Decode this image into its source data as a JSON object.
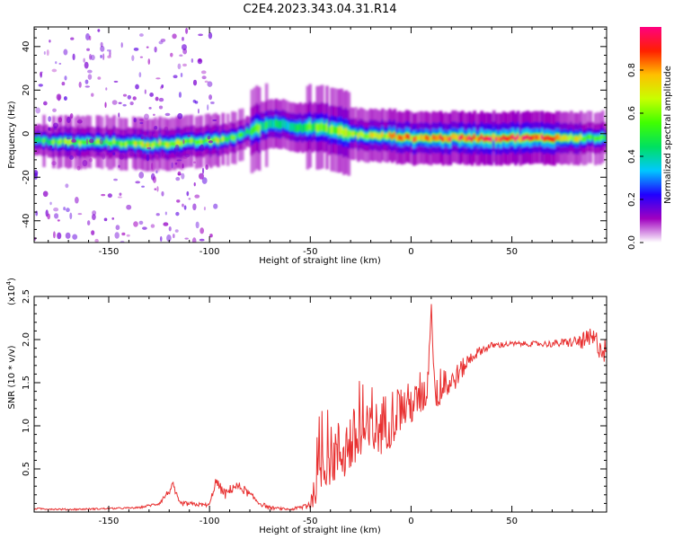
{
  "title": "C2E4.2023.343.04.31.R14",
  "chart_data": [
    {
      "type": "heatmap",
      "title": "C2E4.2023.343.04.31.R14",
      "xlabel": "Height of straight line (km)",
      "ylabel": "Frequency (Hz)",
      "xlim": [
        -187,
        97
      ],
      "ylim": [
        -50,
        49
      ],
      "xticks": [
        -150,
        -100,
        -50,
        0,
        50
      ],
      "yticks": [
        -40,
        -20,
        0,
        20,
        40
      ],
      "xtick_labels": [
        "-150",
        "-100",
        "-50",
        "0",
        "50"
      ],
      "ytick_labels": [
        "-40",
        "-20",
        "0",
        "20",
        "40"
      ],
      "colorbar": {
        "label": "Normalized spectral amplitude",
        "range": [
          0,
          1
        ],
        "ticks": [
          0.0,
          0.2,
          0.4,
          0.6,
          0.8
        ],
        "tick_labels": [
          "0.0",
          "0.2",
          "0.4",
          "0.6",
          "0.8"
        ],
        "colormap": [
          "#ffffff",
          "#a000c0",
          "#2000ff",
          "#00c8ff",
          "#00e060",
          "#40ff00",
          "#c8ff00",
          "#ffc000",
          "#ff2000",
          "#ff0080"
        ]
      },
      "ridge": {
        "description_values_hz_vs_km": true,
        "x": [
          -187,
          -170,
          -150,
          -130,
          -110,
          -95,
          -85,
          -75,
          -68,
          -62,
          -55,
          -48,
          -40,
          -30,
          -20,
          -10,
          0,
          10,
          30,
          50,
          75,
          90,
          97
        ],
        "y": [
          -3,
          -4,
          -4,
          -5,
          -4,
          -3,
          -1,
          3,
          5,
          4,
          3,
          3,
          2,
          0,
          -1,
          -1,
          -2,
          -2,
          -2,
          -2,
          -2,
          -2,
          -2
        ],
        "amplitude": [
          0.5,
          0.6,
          0.55,
          0.7,
          0.6,
          0.65,
          0.5,
          0.55,
          0.45,
          0.4,
          0.5,
          0.55,
          0.6,
          0.65,
          0.7,
          0.75,
          0.85,
          0.9,
          0.92,
          0.95,
          0.9,
          0.6,
          0.5
        ]
      }
    },
    {
      "type": "line",
      "xlabel": "Height of straight line (km)",
      "ylabel": "SNR (10 * v/v)",
      "y_scale_label": "(x10",
      "y_scale_exp": "4",
      "y_scale_close": ")",
      "xlim": [
        -187,
        97
      ],
      "ylim": [
        0,
        2.5
      ],
      "xticks": [
        -150,
        -100,
        -50,
        0,
        50
      ],
      "yticks": [
        0.5,
        1.0,
        1.5,
        2.0,
        2.5
      ],
      "xtick_labels": [
        "-150",
        "-100",
        "-50",
        "0",
        "50"
      ],
      "ytick_labels": [
        "0.5",
        "1.0",
        "1.5",
        "2.0",
        "2.5"
      ],
      "color": "#e83030",
      "x": [
        -187,
        -170,
        -150,
        -135,
        -125,
        -118,
        -115,
        -100,
        -97,
        -92,
        -88,
        -84,
        -80,
        -75,
        -70,
        -60,
        -55,
        -50,
        -47,
        -45,
        -40,
        -35,
        -30,
        -25,
        -20,
        -15,
        -10,
        -5,
        0,
        5,
        8,
        10,
        12,
        15,
        20,
        25,
        30,
        35,
        40,
        50,
        60,
        70,
        80,
        85,
        90,
        95,
        97
      ],
      "y": [
        0.04,
        0.03,
        0.04,
        0.05,
        0.1,
        0.3,
        0.1,
        0.08,
        0.35,
        0.2,
        0.3,
        0.28,
        0.2,
        0.1,
        0.05,
        0.03,
        0.05,
        0.1,
        0.3,
        0.55,
        0.65,
        0.7,
        0.8,
        0.85,
        0.9,
        1.0,
        1.1,
        1.2,
        1.25,
        1.3,
        1.4,
        2.4,
        1.35,
        1.4,
        1.5,
        1.65,
        1.8,
        1.88,
        1.93,
        1.95,
        1.95,
        1.95,
        1.97,
        1.98,
        2.0,
        1.9,
        1.85
      ],
      "noise": [
        0.01,
        0.01,
        0.01,
        0.01,
        0.02,
        0.05,
        0.03,
        0.02,
        0.06,
        0.06,
        0.06,
        0.06,
        0.04,
        0.03,
        0.02,
        0.01,
        0.03,
        0.08,
        0.2,
        0.3,
        0.35,
        0.4,
        0.4,
        0.4,
        0.35,
        0.35,
        0.35,
        0.3,
        0.25,
        0.2,
        0.2,
        0.05,
        0.2,
        0.15,
        0.15,
        0.12,
        0.08,
        0.05,
        0.04,
        0.03,
        0.03,
        0.04,
        0.06,
        0.1,
        0.15,
        0.15,
        0.15
      ]
    }
  ]
}
